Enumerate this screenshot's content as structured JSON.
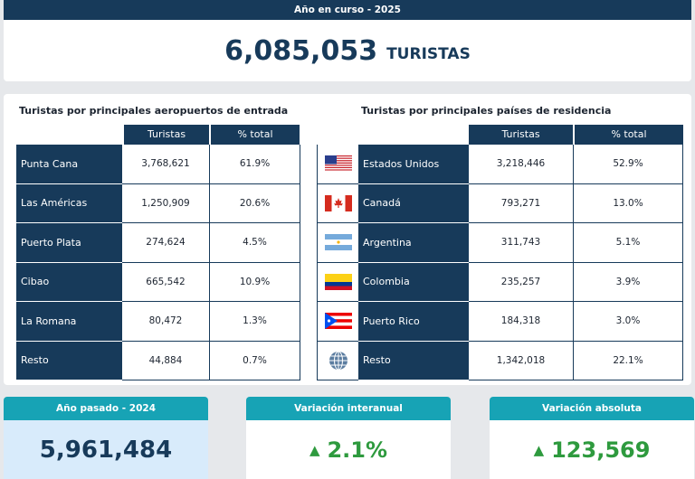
{
  "header": {
    "current_year_label": "Año en curso - 2025"
  },
  "total": {
    "value": "6,085,053",
    "unit": "TURISTAS"
  },
  "airports": {
    "title": "Turistas por principales aeropuertos de entrada",
    "col_tourists": "Turistas",
    "col_pct": "% total",
    "rows": [
      {
        "name": "Punta Cana",
        "tourists": "3,768,621",
        "pct": "61.9%"
      },
      {
        "name": "Las Américas",
        "tourists": "1,250,909",
        "pct": "20.6%"
      },
      {
        "name": "Puerto Plata",
        "tourists": "274,624",
        "pct": "4.5%"
      },
      {
        "name": "Cibao",
        "tourists": "665,542",
        "pct": "10.9%"
      },
      {
        "name": "La Romana",
        "tourists": "80,472",
        "pct": "1.3%"
      },
      {
        "name": "Resto",
        "tourists": "44,884",
        "pct": "0.7%"
      }
    ]
  },
  "countries": {
    "title": "Turistas por principales países de residencia",
    "col_tourists": "Turistas",
    "col_pct": "% total",
    "rows": [
      {
        "flag": "usa-flag-icon",
        "name": "Estados Unidos",
        "tourists": "3,218,446",
        "pct": "52.9%"
      },
      {
        "flag": "canada-flag-icon",
        "name": "Canadá",
        "tourists": "793,271",
        "pct": "13.0%"
      },
      {
        "flag": "argentina-flag-icon",
        "name": "Argentina",
        "tourists": "311,743",
        "pct": "5.1%"
      },
      {
        "flag": "colombia-flag-icon",
        "name": "Colombia",
        "tourists": "235,257",
        "pct": "3.9%"
      },
      {
        "flag": "puerto-rico-flag-icon",
        "name": "Puerto Rico",
        "tourists": "184,318",
        "pct": "3.0%"
      },
      {
        "flag": "globe-icon",
        "name": "Resto",
        "tourists": "1,342,018",
        "pct": "22.1%"
      }
    ]
  },
  "kpis": {
    "previous": {
      "label": "Año pasado - 2024",
      "value": "5,961,484"
    },
    "yoy": {
      "label": "Variación interanual",
      "value": "2.1%",
      "icon": "up-triangle-icon"
    },
    "absolute": {
      "label": "Variación absoluta",
      "value": "123,569",
      "icon": "up-triangle-icon"
    }
  },
  "colors": {
    "navy": "#173a5a",
    "teal": "#17a3b5",
    "green": "#2e9a3e",
    "light_blue": "#d8ebfb"
  }
}
